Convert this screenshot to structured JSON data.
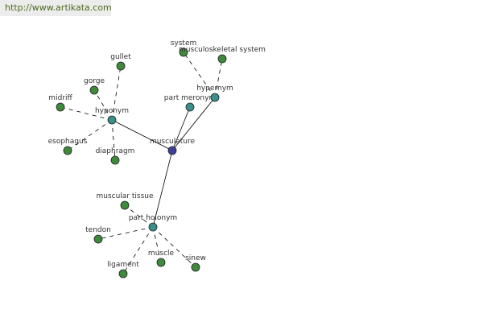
{
  "watermark": "http://www.artikata.com",
  "colors": {
    "root": "#3b3f9a",
    "relation": "#3a8f8c",
    "leaf": "#3e8a3a",
    "edge": "#000000"
  },
  "root": {
    "id": "musculature",
    "label": "musculature"
  },
  "relations": [
    {
      "id": "hyponym",
      "label": "hyponym",
      "children": [
        "gullet",
        "gorge",
        "midriff",
        "esophagus",
        "diaphragm"
      ]
    },
    {
      "id": "part_meronym",
      "label": "part meronym",
      "children": []
    },
    {
      "id": "hypernym",
      "label": "hypernym",
      "children": [
        "system",
        "musculoskeletal system"
      ]
    },
    {
      "id": "part_holonym",
      "label": "part holonym",
      "children": [
        "muscular tissue",
        "tendon",
        "ligament",
        "muscle",
        "sinew"
      ]
    }
  ]
}
